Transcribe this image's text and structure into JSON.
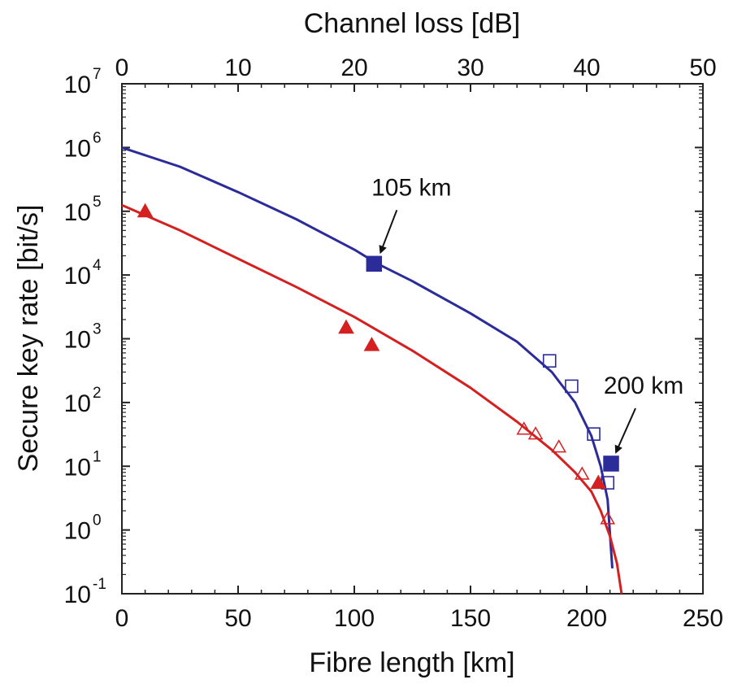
{
  "chart_data": {
    "type": "scatter",
    "xlabel": "Fibre length [km]",
    "x2label": "Channel loss [dB]",
    "ylabel": "Secure key rate [bit/s]",
    "xlim": [
      0,
      250
    ],
    "x2lim": [
      0,
      50
    ],
    "ylim_log10": [
      -1,
      7
    ],
    "yscale": "log",
    "grid": false,
    "x_ticks": [
      "0",
      "50",
      "100",
      "150",
      "200",
      "250"
    ],
    "x2_ticks": [
      "0",
      "10",
      "20",
      "30",
      "40",
      "50"
    ],
    "y_ticks": [
      {
        "base": "10",
        "exp": "7"
      },
      {
        "base": "10",
        "exp": "6"
      },
      {
        "base": "10",
        "exp": "5"
      },
      {
        "base": "10",
        "exp": "4"
      },
      {
        "base": "10",
        "exp": "3"
      },
      {
        "base": "10",
        "exp": "2"
      },
      {
        "base": "10",
        "exp": "1"
      },
      {
        "base": "10",
        "exp": "0"
      },
      {
        "base": "10",
        "exp": "-1"
      }
    ],
    "colors": {
      "blue": "#2b2b9a",
      "red": "#d42020"
    },
    "series": [
      {
        "color": "#2b2b9a",
        "kind": "line",
        "points": [
          [
            0,
            1000000
          ],
          [
            25,
            500000
          ],
          [
            50,
            200000
          ],
          [
            75,
            75000
          ],
          [
            100,
            25000
          ],
          [
            110,
            15000
          ],
          [
            125,
            8000
          ],
          [
            150,
            2500
          ],
          [
            170,
            900
          ],
          [
            185,
            300
          ],
          [
            195,
            100
          ],
          [
            202,
            30
          ],
          [
            206,
            10
          ],
          [
            209,
            3
          ],
          [
            211,
            0.25
          ]
        ]
      },
      {
        "color": "#2b2b9a",
        "kind": "filled-square",
        "points": [
          [
            108.5,
            15000
          ],
          [
            210.5,
            11
          ]
        ]
      },
      {
        "color": "#2b2b9a",
        "kind": "open-square",
        "points": [
          [
            184,
            450
          ],
          [
            193.5,
            180
          ],
          [
            203,
            32
          ],
          [
            209,
            5.5
          ]
        ]
      },
      {
        "color": "#d42020",
        "kind": "line",
        "points": [
          [
            0,
            125000
          ],
          [
            25,
            50000
          ],
          [
            50,
            18000
          ],
          [
            75,
            6500
          ],
          [
            100,
            2200
          ],
          [
            125,
            650
          ],
          [
            150,
            170
          ],
          [
            170,
            50
          ],
          [
            185,
            18
          ],
          [
            195,
            8
          ],
          [
            202,
            4
          ],
          [
            206,
            2
          ],
          [
            210,
            0.8
          ],
          [
            213,
            0.3
          ],
          [
            215,
            0.1
          ]
        ]
      },
      {
        "color": "#d42020",
        "kind": "filled-triangle",
        "points": [
          [
            10,
            100000
          ],
          [
            96.5,
            1500
          ],
          [
            107.5,
            800
          ],
          [
            205,
            5.5
          ]
        ]
      },
      {
        "color": "#d42020",
        "kind": "open-triangle",
        "points": [
          [
            173,
            38
          ],
          [
            178,
            32
          ],
          [
            188,
            20
          ],
          [
            198,
            7.5
          ],
          [
            209,
            1.5
          ]
        ]
      }
    ],
    "annotations": [
      {
        "text": "105 km",
        "point": [
          108.5,
          15000
        ]
      },
      {
        "text": "200 km",
        "point": [
          210.5,
          11
        ]
      }
    ]
  }
}
